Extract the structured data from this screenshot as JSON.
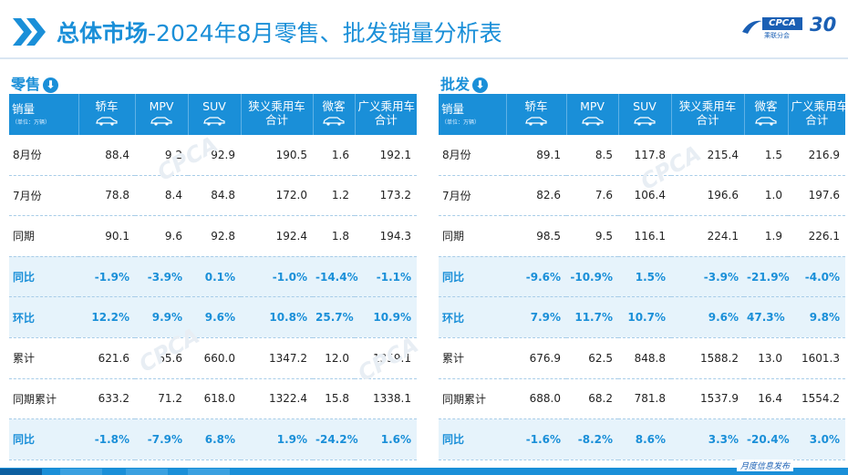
{
  "header": {
    "title_bold": "总体市场",
    "title_rest": "-2024年8月零售、批发销量分析表",
    "logo_text": "CPCA",
    "logo_cn": "乘联分会",
    "logo_num": "30"
  },
  "columns": {
    "corner": "销量",
    "unit": "（单位：万辆）",
    "c1": "轿车",
    "c2": "MPV",
    "c3": "SUV",
    "c4a": "狭义乘用车",
    "c4b": "合计",
    "c5": "微客",
    "c6a": "广义乘用车",
    "c6b": "合计"
  },
  "retail": {
    "label": "零售",
    "arrow": "⬇",
    "rows": [
      {
        "label": "8月份",
        "v": [
          "88.4",
          "9.2",
          "92.9",
          "190.5",
          "1.6",
          "192.1"
        ],
        "highlight": false
      },
      {
        "label": "7月份",
        "v": [
          "78.8",
          "8.4",
          "84.8",
          "172.0",
          "1.2",
          "173.2"
        ],
        "highlight": false
      },
      {
        "label": "同期",
        "v": [
          "90.1",
          "9.6",
          "92.8",
          "192.4",
          "1.8",
          "194.3"
        ],
        "highlight": false
      },
      {
        "label": "同比",
        "v": [
          "-1.9%",
          "-3.9%",
          "0.1%",
          "-1.0%",
          "-14.4%",
          "-1.1%"
        ],
        "highlight": true
      },
      {
        "label": "环比",
        "v": [
          "12.2%",
          "9.9%",
          "9.6%",
          "10.8%",
          "25.7%",
          "10.9%"
        ],
        "highlight": true
      },
      {
        "label": "累计",
        "v": [
          "621.6",
          "65.6",
          "660.0",
          "1347.2",
          "12.0",
          "1359.1"
        ],
        "highlight": false
      },
      {
        "label": "同期累计",
        "v": [
          "633.2",
          "71.2",
          "618.0",
          "1322.4",
          "15.8",
          "1338.1"
        ],
        "highlight": false
      },
      {
        "label": "同比",
        "v": [
          "-1.8%",
          "-7.9%",
          "6.8%",
          "1.9%",
          "-24.2%",
          "1.6%"
        ],
        "highlight": true
      }
    ]
  },
  "wholesale": {
    "label": "批发",
    "arrow": "⬇",
    "rows": [
      {
        "label": "8月份",
        "v": [
          "89.1",
          "8.5",
          "117.8",
          "215.4",
          "1.5",
          "216.9"
        ],
        "highlight": false
      },
      {
        "label": "7月份",
        "v": [
          "82.6",
          "7.6",
          "106.4",
          "196.6",
          "1.0",
          "197.6"
        ],
        "highlight": false
      },
      {
        "label": "同期",
        "v": [
          "98.5",
          "9.5",
          "116.1",
          "224.1",
          "1.9",
          "226.1"
        ],
        "highlight": false
      },
      {
        "label": "同比",
        "v": [
          "-9.6%",
          "-10.9%",
          "1.5%",
          "-3.9%",
          "-21.9%",
          "-4.0%"
        ],
        "highlight": true
      },
      {
        "label": "环比",
        "v": [
          "7.9%",
          "11.7%",
          "10.7%",
          "9.6%",
          "47.3%",
          "9.8%"
        ],
        "highlight": true
      },
      {
        "label": "累计",
        "v": [
          "676.9",
          "62.5",
          "848.8",
          "1588.2",
          "13.0",
          "1601.3"
        ],
        "highlight": false
      },
      {
        "label": "同期累计",
        "v": [
          "688.0",
          "68.2",
          "781.8",
          "1537.9",
          "16.4",
          "1554.2"
        ],
        "highlight": false
      },
      {
        "label": "同比",
        "v": [
          "-1.6%",
          "-8.2%",
          "8.6%",
          "3.3%",
          "-20.4%",
          "3.0%"
        ],
        "highlight": true
      }
    ]
  },
  "watermark": "CPCA",
  "footer": {
    "publish": "月度信息发布"
  },
  "colors": {
    "accent": "#1a8fd8",
    "highlight_row": "#e6f3fb",
    "brand": "#1a5fb4"
  }
}
